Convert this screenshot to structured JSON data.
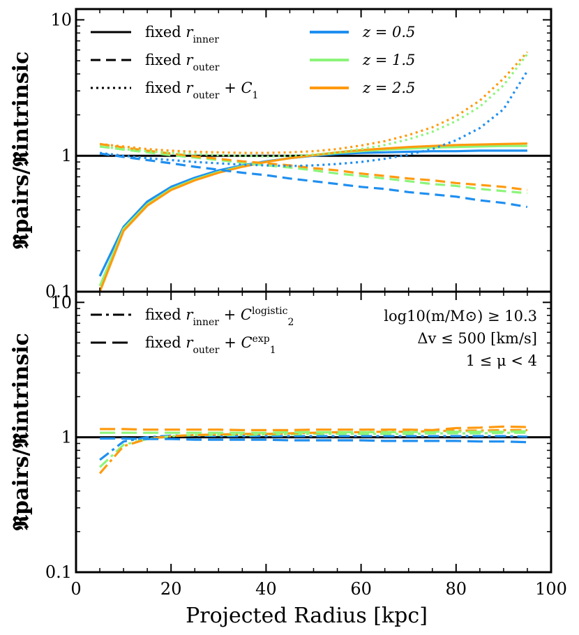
{
  "chart_data": [
    {
      "type": "line",
      "panel": "top",
      "ylabel": "𝕽pairs/𝕽intrinsic",
      "yscale": "log",
      "ylim": [
        0.1,
        12
      ],
      "xlim": [
        0,
        100
      ],
      "yticks": [
        "0.1",
        "1",
        "10"
      ],
      "legend_left": [
        {
          "style": "solid",
          "text": "fixed r",
          "sub": "inner",
          "tail": ""
        },
        {
          "style": "dashed",
          "text": "fixed r",
          "sub": "outer",
          "tail": ""
        },
        {
          "style": "dotted",
          "text": "fixed r",
          "sub": "outer",
          "tail": " + C",
          "tailsub": "1"
        }
      ],
      "legend_right": [
        {
          "color": "#1f8ff0",
          "text": "z = 0.5"
        },
        {
          "color": "#8cf57a",
          "text": "z = 1.5"
        },
        {
          "color": "#ff9a0e",
          "text": "z = 2.5"
        }
      ],
      "reference_line": 1,
      "series": [
        {
          "z": "0.5",
          "style": "solid",
          "color": "#1f8ff0",
          "x": [
            5,
            10,
            15,
            20,
            25,
            30,
            35,
            40,
            45,
            50,
            55,
            60,
            65,
            70,
            75,
            80,
            85,
            90,
            95
          ],
          "y": [
            0.13,
            0.3,
            0.46,
            0.59,
            0.69,
            0.78,
            0.85,
            0.91,
            0.96,
            1.0,
            1.03,
            1.05,
            1.06,
            1.07,
            1.08,
            1.08,
            1.09,
            1.09,
            1.09
          ]
        },
        {
          "z": "1.5",
          "style": "solid",
          "color": "#8cf57a",
          "x": [
            5,
            10,
            15,
            20,
            25,
            30,
            35,
            40,
            45,
            50,
            55,
            60,
            65,
            70,
            75,
            80,
            85,
            90,
            95
          ],
          "y": [
            0.11,
            0.29,
            0.44,
            0.57,
            0.67,
            0.76,
            0.84,
            0.9,
            0.96,
            1.01,
            1.05,
            1.08,
            1.11,
            1.13,
            1.15,
            1.16,
            1.17,
            1.18,
            1.18
          ]
        },
        {
          "z": "2.5",
          "style": "solid",
          "color": "#ff9a0e",
          "x": [
            5,
            10,
            15,
            20,
            25,
            30,
            35,
            40,
            45,
            50,
            55,
            60,
            65,
            70,
            75,
            80,
            85,
            90,
            95
          ],
          "y": [
            0.1,
            0.28,
            0.43,
            0.56,
            0.66,
            0.75,
            0.83,
            0.9,
            0.96,
            1.01,
            1.06,
            1.1,
            1.13,
            1.16,
            1.18,
            1.2,
            1.21,
            1.22,
            1.23
          ]
        },
        {
          "z": "0.5",
          "style": "dashed",
          "color": "#1f8ff0",
          "x": [
            5,
            10,
            15,
            20,
            25,
            30,
            35,
            40,
            45,
            50,
            55,
            60,
            65,
            70,
            75,
            80,
            85,
            90,
            95
          ],
          "y": [
            1.04,
            0.98,
            0.93,
            0.88,
            0.83,
            0.79,
            0.75,
            0.72,
            0.68,
            0.65,
            0.62,
            0.59,
            0.57,
            0.54,
            0.52,
            0.5,
            0.47,
            0.45,
            0.42
          ]
        },
        {
          "z": "1.5",
          "style": "dashed",
          "color": "#8cf57a",
          "x": [
            5,
            10,
            15,
            20,
            25,
            30,
            35,
            40,
            45,
            50,
            55,
            60,
            65,
            70,
            75,
            80,
            85,
            90,
            95
          ],
          "y": [
            1.17,
            1.11,
            1.06,
            1.01,
            0.97,
            0.93,
            0.89,
            0.85,
            0.82,
            0.78,
            0.74,
            0.71,
            0.68,
            0.65,
            0.62,
            0.6,
            0.57,
            0.55,
            0.53
          ]
        },
        {
          "z": "2.5",
          "style": "dashed",
          "color": "#ff9a0e",
          "x": [
            5,
            10,
            15,
            20,
            25,
            30,
            35,
            40,
            45,
            50,
            55,
            60,
            65,
            70,
            75,
            80,
            85,
            90,
            95
          ],
          "y": [
            1.22,
            1.15,
            1.09,
            1.04,
            0.99,
            0.95,
            0.91,
            0.88,
            0.85,
            0.81,
            0.78,
            0.74,
            0.71,
            0.68,
            0.66,
            0.63,
            0.61,
            0.59,
            0.56
          ]
        },
        {
          "z": "0.5",
          "style": "dotted",
          "color": "#1f8ff0",
          "x": [
            5,
            10,
            15,
            20,
            25,
            30,
            35,
            40,
            45,
            50,
            55,
            60,
            65,
            70,
            75,
            80,
            85,
            90,
            95
          ],
          "y": [
            1.05,
            1.0,
            0.96,
            0.93,
            0.9,
            0.88,
            0.86,
            0.85,
            0.84,
            0.85,
            0.87,
            0.9,
            0.95,
            1.02,
            1.12,
            1.3,
            1.6,
            2.2,
            4.2
          ]
        },
        {
          "z": "1.5",
          "style": "dotted",
          "color": "#8cf57a",
          "x": [
            5,
            10,
            15,
            20,
            25,
            30,
            35,
            40,
            45,
            50,
            55,
            60,
            65,
            70,
            75,
            80,
            85,
            90,
            95
          ],
          "y": [
            1.17,
            1.12,
            1.08,
            1.05,
            1.03,
            1.01,
            1.0,
            0.99,
            1.0,
            1.02,
            1.06,
            1.12,
            1.2,
            1.32,
            1.5,
            1.8,
            2.3,
            3.3,
            5.6
          ]
        },
        {
          "z": "2.5",
          "style": "dotted",
          "color": "#ff9a0e",
          "x": [
            5,
            10,
            15,
            20,
            25,
            30,
            35,
            40,
            45,
            50,
            55,
            60,
            65,
            70,
            75,
            80,
            85,
            90,
            95
          ],
          "y": [
            1.22,
            1.17,
            1.12,
            1.09,
            1.07,
            1.06,
            1.05,
            1.05,
            1.06,
            1.08,
            1.12,
            1.19,
            1.28,
            1.42,
            1.62,
            1.95,
            2.55,
            3.7,
            5.8
          ]
        }
      ]
    },
    {
      "type": "line",
      "panel": "bottom",
      "ylabel": "𝕽pairs/𝕽intrinsic",
      "xlabel": "Projected Radius [kpc]",
      "yscale": "log",
      "ylim": [
        0.1,
        12
      ],
      "xlim": [
        0,
        100
      ],
      "xticks": [
        "0",
        "20",
        "40",
        "60",
        "80",
        "100"
      ],
      "yticks": [
        "0.1",
        "1",
        "10"
      ],
      "legend_left": [
        {
          "style": "dashdot",
          "text": "fixed r",
          "sub": "inner",
          "tail": " + C",
          "tailsub": "2",
          "tailsup": "logistic"
        },
        {
          "style": "longdash",
          "text": "fixed r",
          "sub": "outer",
          "tail": " + C",
          "tailsub": "1",
          "tailsup": "exp"
        }
      ],
      "annotations": [
        "log10(m/M⊙) ≥ 10.3",
        "Δv ≤ 500 [km/s]",
        "1 ≤ μ < 4"
      ],
      "reference_line": 1,
      "series": [
        {
          "z": "0.5",
          "style": "dashdot",
          "color": "#1f8ff0",
          "x": [
            5,
            10,
            15,
            20,
            25,
            30,
            35,
            40,
            45,
            50,
            55,
            60,
            65,
            70,
            75,
            80,
            85,
            90,
            95
          ],
          "y": [
            0.68,
            0.93,
            1.0,
            1.03,
            1.03,
            1.02,
            1.02,
            1.02,
            1.02,
            1.02,
            1.02,
            1.02,
            1.02,
            1.02,
            1.02,
            1.02,
            1.02,
            1.02,
            1.01
          ]
        },
        {
          "z": "1.5",
          "style": "dashdot",
          "color": "#8cf57a",
          "x": [
            5,
            10,
            15,
            20,
            25,
            30,
            35,
            40,
            45,
            50,
            55,
            60,
            65,
            70,
            75,
            80,
            85,
            90,
            95
          ],
          "y": [
            0.6,
            0.88,
            0.97,
            1.02,
            1.04,
            1.04,
            1.04,
            1.05,
            1.05,
            1.06,
            1.06,
            1.06,
            1.06,
            1.06,
            1.07,
            1.07,
            1.07,
            1.08,
            1.08
          ]
        },
        {
          "z": "2.5",
          "style": "dashdot",
          "color": "#ff9a0e",
          "x": [
            5,
            10,
            15,
            20,
            25,
            30,
            35,
            40,
            45,
            50,
            55,
            60,
            65,
            70,
            75,
            80,
            85,
            90,
            95
          ],
          "y": [
            0.54,
            0.86,
            0.97,
            1.02,
            1.04,
            1.05,
            1.06,
            1.06,
            1.07,
            1.08,
            1.09,
            1.09,
            1.1,
            1.1,
            1.11,
            1.12,
            1.12,
            1.13,
            1.13
          ]
        },
        {
          "z": "0.5",
          "style": "longdash",
          "color": "#1f8ff0",
          "x": [
            5,
            10,
            15,
            20,
            25,
            30,
            35,
            40,
            45,
            50,
            55,
            60,
            65,
            70,
            75,
            80,
            85,
            90,
            95
          ],
          "y": [
            0.98,
            0.98,
            0.97,
            0.97,
            0.96,
            0.96,
            0.96,
            0.96,
            0.95,
            0.95,
            0.95,
            0.95,
            0.94,
            0.94,
            0.94,
            0.94,
            0.93,
            0.93,
            0.92
          ]
        },
        {
          "z": "1.5",
          "style": "longdash",
          "color": "#8cf57a",
          "x": [
            5,
            10,
            15,
            20,
            25,
            30,
            35,
            40,
            45,
            50,
            55,
            60,
            65,
            70,
            75,
            80,
            85,
            90,
            95
          ],
          "y": [
            1.08,
            1.08,
            1.08,
            1.08,
            1.08,
            1.08,
            1.08,
            1.08,
            1.09,
            1.09,
            1.09,
            1.09,
            1.09,
            1.09,
            1.1,
            1.1,
            1.1,
            1.1,
            1.11
          ]
        },
        {
          "z": "2.5",
          "style": "longdash",
          "color": "#ff9a0e",
          "x": [
            5,
            10,
            15,
            20,
            25,
            30,
            35,
            40,
            45,
            50,
            55,
            60,
            65,
            70,
            75,
            80,
            85,
            90,
            95
          ],
          "y": [
            1.15,
            1.15,
            1.14,
            1.14,
            1.14,
            1.14,
            1.13,
            1.13,
            1.13,
            1.14,
            1.14,
            1.14,
            1.14,
            1.14,
            1.13,
            1.17,
            1.18,
            1.2,
            1.19
          ]
        }
      ]
    }
  ]
}
